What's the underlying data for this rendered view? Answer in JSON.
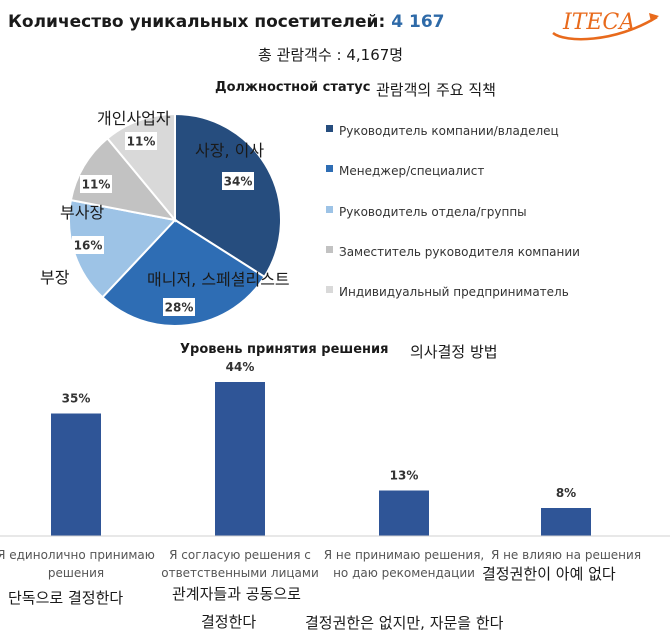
{
  "header": {
    "title": "Количество уникальных посетителей:",
    "count": "4 167",
    "subtitle_ko": "총 관람객수 : 4,167명",
    "logo_text": "ITECA"
  },
  "pie_chart": {
    "title": "Должностной статус",
    "title_ko": "관람객의 주요 직책",
    "ko_labels": {
      "owner": "사장, 이사",
      "manager": "매니저, 스페셜리스트",
      "head": "부장",
      "deputy": "부사장",
      "entrepreneur": "개인사업자"
    }
  },
  "bar_chart": {
    "title": "Уровень принятия решения",
    "title_ko": "의사결정 방법",
    "categories_ko": [
      [
        "단독으로 결정한다"
      ],
      [
        "관계자들과 공동으로",
        "결정한다"
      ],
      [
        "결정권한은 없지만, 자문을 한다"
      ],
      [
        "결정권한이 아예 없다"
      ]
    ]
  },
  "chart_data": [
    {
      "type": "pie",
      "title": "Должностной статус",
      "categories": [
        "Руководитель компании/владелец",
        "Менеджер/специалист",
        "Руководитель отдела/группы",
        "Заместитель руководителя компании",
        "Индивидуальный предприниматель"
      ],
      "values": [
        34,
        28,
        16,
        11,
        11
      ],
      "value_labels": [
        "34%",
        "28%",
        "16%",
        "11%",
        "11%"
      ],
      "colors": [
        "#264d7e",
        "#2e6db4",
        "#9dc3e6",
        "#c2c2c2",
        "#d9d9d9"
      ],
      "legend": "right"
    },
    {
      "type": "bar",
      "title": "Уровень принятия решения",
      "categories": [
        "Я единолично принимаю решения",
        "Я согласую решения с ответственными лицами",
        "Я не принимаю решения, но даю рекомендации",
        "Я не влияю на решения"
      ],
      "values": [
        35,
        44,
        13,
        8
      ],
      "value_labels": [
        "35%",
        "44%",
        "13%",
        "8%"
      ],
      "color": "#2f5597",
      "ylim": [
        0,
        50
      ],
      "grid": false
    }
  ]
}
